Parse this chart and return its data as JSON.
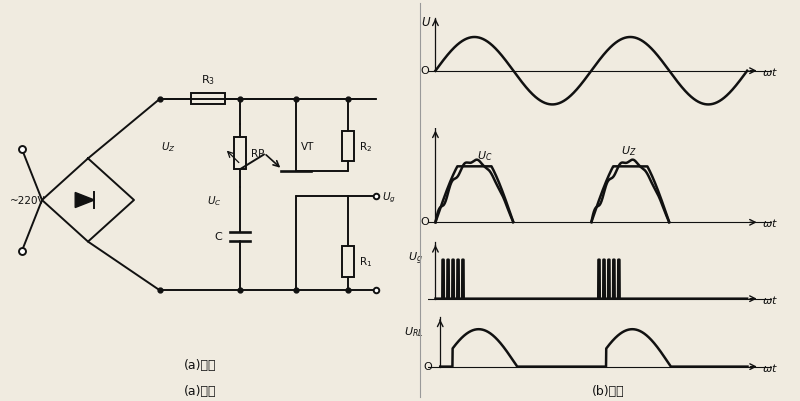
{
  "bg_color": "#f0ebe0",
  "fig_width": 8.0,
  "fig_height": 4.02,
  "label_a": "(a)电路",
  "label_b": "(b)波形",
  "voltage_label": "~220V",
  "circuit_color": "#111111",
  "wf_color": "#111111"
}
